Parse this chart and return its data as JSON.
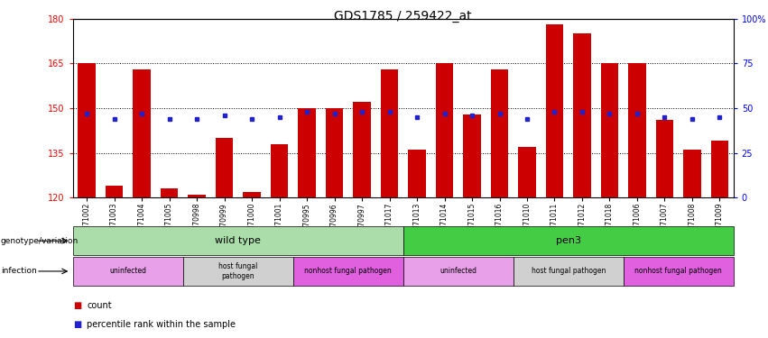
{
  "title": "GDS1785 / 259422_at",
  "samples": [
    "GSM71002",
    "GSM71003",
    "GSM71004",
    "GSM71005",
    "GSM70998",
    "GSM70999",
    "GSM71000",
    "GSM71001",
    "GSM70995",
    "GSM70996",
    "GSM70997",
    "GSM71017",
    "GSM71013",
    "GSM71014",
    "GSM71015",
    "GSM71016",
    "GSM71010",
    "GSM71011",
    "GSM71012",
    "GSM71018",
    "GSM71006",
    "GSM71007",
    "GSM71008",
    "GSM71009"
  ],
  "counts": [
    165,
    124,
    163,
    123,
    121,
    140,
    122,
    138,
    150,
    150,
    152,
    163,
    136,
    165,
    148,
    163,
    137,
    178,
    175,
    165,
    165,
    146,
    136,
    139
  ],
  "percentiles": [
    47,
    44,
    47,
    44,
    44,
    46,
    44,
    45,
    48,
    47,
    48,
    48,
    45,
    47,
    46,
    47,
    44,
    48,
    48,
    47,
    47,
    45,
    44,
    45
  ],
  "y_min": 120,
  "y_max": 180,
  "y_ticks_left": [
    120,
    135,
    150,
    165,
    180
  ],
  "y_ticks_right": [
    0,
    25,
    50,
    75,
    100
  ],
  "y_ticks_right_labels": [
    "0",
    "25",
    "50",
    "75",
    "100%"
  ],
  "bar_color": "#cc0000",
  "dot_color": "#2222cc",
  "genotype_groups": [
    {
      "label": "wild type",
      "start": 0,
      "end": 11,
      "color": "#aaddaa"
    },
    {
      "label": "pen3",
      "start": 12,
      "end": 23,
      "color": "#44cc44"
    }
  ],
  "infection_groups": [
    {
      "label": "uninfected",
      "start": 0,
      "end": 3,
      "color": "#e8a0e8"
    },
    {
      "label": "host fungal\npathogen",
      "start": 4,
      "end": 7,
      "color": "#d0d0d0"
    },
    {
      "label": "nonhost fungal pathogen",
      "start": 8,
      "end": 11,
      "color": "#e060e0"
    },
    {
      "label": "uninfected",
      "start": 12,
      "end": 15,
      "color": "#e8a0e8"
    },
    {
      "label": "host fungal pathogen",
      "start": 16,
      "end": 19,
      "color": "#d0d0d0"
    },
    {
      "label": "nonhost fungal pathogen",
      "start": 20,
      "end": 23,
      "color": "#e060e0"
    }
  ],
  "genotype_label": "genotype/variation",
  "infection_label": "infection",
  "legend_count": "count",
  "legend_percentile": "percentile rank within the sample"
}
